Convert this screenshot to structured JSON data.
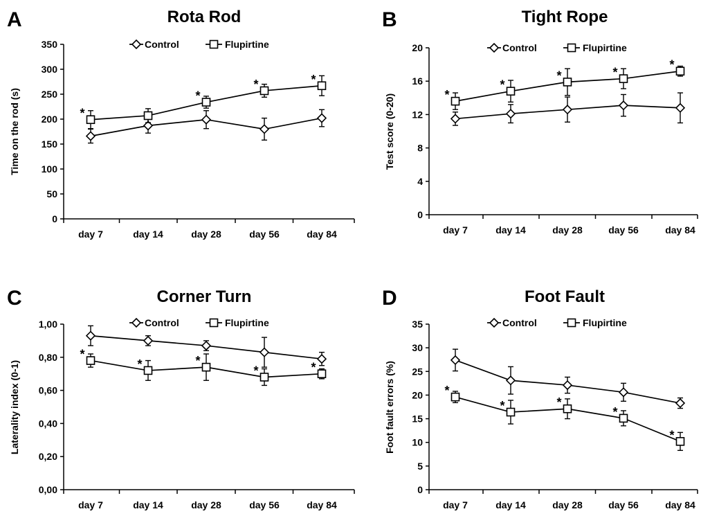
{
  "panels": [
    {
      "letter": "A",
      "chart_data": {
        "type": "line",
        "title": "Rota Rod",
        "ylabel": "Time on the rod (s)",
        "categories": [
          "day 7",
          "day 14",
          "day 28",
          "day 56",
          "day 84"
        ],
        "ylim": [
          0,
          350
        ],
        "yticks": [
          "0",
          "50",
          "100",
          "150",
          "200",
          "250",
          "300",
          "350"
        ],
        "grid": false,
        "legend": "top-center",
        "series": [
          {
            "name": "Control",
            "marker": "diamond",
            "values": [
              166,
              187,
              199,
              180,
              202
            ],
            "errors": [
              14,
              15,
              18,
              22,
              17
            ]
          },
          {
            "name": "Flupirtine",
            "marker": "square",
            "values": [
              199,
              207,
              234,
              257,
              267
            ],
            "errors": [
              18,
              14,
              12,
              13,
              20
            ]
          }
        ],
        "annotations": [
          {
            "category": "day 7",
            "text": "*"
          },
          {
            "category": "day 28",
            "text": "*"
          },
          {
            "category": "day 56",
            "text": "*"
          },
          {
            "category": "day 84",
            "text": "*"
          }
        ]
      }
    },
    {
      "letter": "B",
      "chart_data": {
        "type": "line",
        "title": "Tight Rope",
        "ylabel": "Test score (0-20)",
        "categories": [
          "day 7",
          "day 14",
          "day 28",
          "day 56",
          "day 84"
        ],
        "ylim": [
          0,
          20
        ],
        "yticks": [
          "0",
          "4",
          "8",
          "12",
          "16",
          "20"
        ],
        "grid": false,
        "legend": "top-center",
        "series": [
          {
            "name": "Control",
            "marker": "diamond",
            "values": [
              11.5,
              12.1,
              12.6,
              13.1,
              12.8
            ],
            "errors": [
              0.8,
              1.1,
              1.5,
              1.3,
              1.8
            ]
          },
          {
            "name": "Flupirtine",
            "marker": "square",
            "values": [
              13.6,
              14.8,
              15.9,
              16.3,
              17.2
            ],
            "errors": [
              1.0,
              1.3,
              1.6,
              1.2,
              0.6
            ]
          }
        ],
        "annotations": [
          {
            "category": "day 7",
            "text": "*"
          },
          {
            "category": "day 14",
            "text": "*"
          },
          {
            "category": "day 28",
            "text": "*"
          },
          {
            "category": "day 56",
            "text": "*"
          },
          {
            "category": "day 84",
            "text": "*"
          }
        ]
      }
    },
    {
      "letter": "C",
      "chart_data": {
        "type": "line",
        "title": "Corner Turn",
        "ylabel": "Laterality index (0-1)",
        "categories": [
          "day 7",
          "day 14",
          "day 28",
          "day 56",
          "day 84"
        ],
        "ylim": [
          0,
          1
        ],
        "yticks": [
          "0,00",
          "0,20",
          "0,40",
          "0,60",
          "0,80",
          "1,00"
        ],
        "grid": false,
        "legend": "top-center",
        "series": [
          {
            "name": "Control",
            "marker": "diamond",
            "values": [
              0.93,
              0.9,
              0.87,
              0.83,
              0.79
            ],
            "errors": [
              0.06,
              0.03,
              0.03,
              0.09,
              0.04
            ]
          },
          {
            "name": "Flupirtine",
            "marker": "square",
            "values": [
              0.78,
              0.72,
              0.74,
              0.68,
              0.7
            ],
            "errors": [
              0.04,
              0.06,
              0.08,
              0.05,
              0.03
            ]
          }
        ],
        "annotations": [
          {
            "category": "day 7",
            "text": "*"
          },
          {
            "category": "day 14",
            "text": "*"
          },
          {
            "category": "day 28",
            "text": "*"
          },
          {
            "category": "day 56",
            "text": "*"
          },
          {
            "category": "day 84",
            "text": "*"
          }
        ]
      }
    },
    {
      "letter": "D",
      "chart_data": {
        "type": "line",
        "title": "Foot Fault",
        "ylabel": "Foot fault errors (%)",
        "categories": [
          "day 7",
          "day 14",
          "day 28",
          "day 56",
          "day 84"
        ],
        "ylim": [
          0,
          35
        ],
        "yticks": [
          "0",
          "5",
          "10",
          "15",
          "20",
          "25",
          "30",
          "35"
        ],
        "grid": false,
        "legend": "top-center",
        "series": [
          {
            "name": "Control",
            "marker": "diamond",
            "values": [
              27.4,
              23.1,
              22.1,
              20.6,
              18.3
            ],
            "errors": [
              2.3,
              2.9,
              1.7,
              1.9,
              1.1
            ]
          },
          {
            "name": "Flupirtine",
            "marker": "square",
            "values": [
              19.6,
              16.4,
              17.1,
              15.1,
              10.2
            ],
            "errors": [
              1.2,
              2.5,
              2.1,
              1.6,
              1.9
            ]
          }
        ],
        "annotations": [
          {
            "category": "day 7",
            "text": "*"
          },
          {
            "category": "day 14",
            "text": "*"
          },
          {
            "category": "day 28",
            "text": "*"
          },
          {
            "category": "day 56",
            "text": "*"
          },
          {
            "category": "day 84",
            "text": "*"
          }
        ]
      }
    }
  ]
}
